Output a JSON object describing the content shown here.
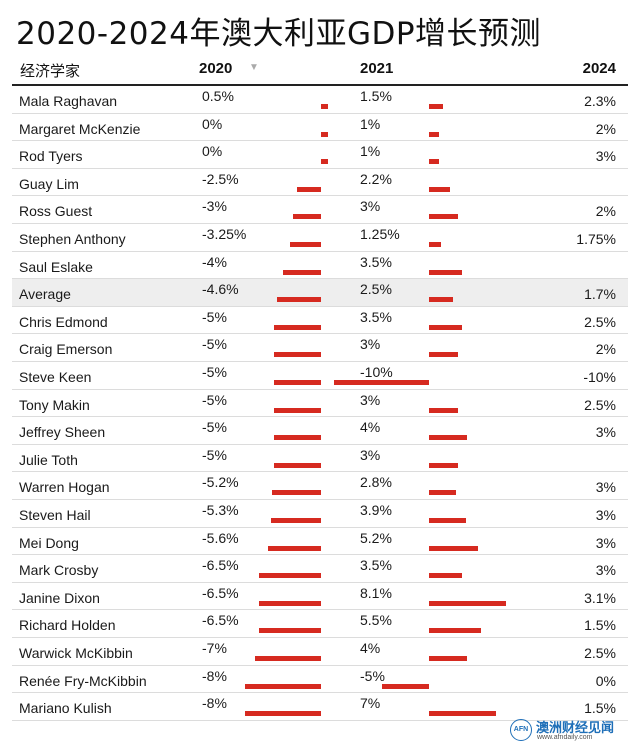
{
  "title": "2020-2024年澳大利亚GDP增长预测",
  "chart_data": {
    "type": "table",
    "columns": [
      "经济学家",
      "2020",
      "2021",
      "2024"
    ],
    "sorted_by": "2020",
    "bar_color": "#d62a20",
    "rows": [
      {
        "name": "Mala Raghavan",
        "y2020": "0.5%",
        "y2021": "1.5%",
        "y2024": "2.3%",
        "n2020": 0.5,
        "n2021": 1.5
      },
      {
        "name": "Margaret McKenzie",
        "y2020": "0%",
        "y2021": "1%",
        "y2024": "2%",
        "n2020": 0,
        "n2021": 1
      },
      {
        "name": "Rod Tyers",
        "y2020": "0%",
        "y2021": "1%",
        "y2024": "3%",
        "n2020": 0,
        "n2021": 1
      },
      {
        "name": "Guay Lim",
        "y2020": "-2.5%",
        "y2021": "2.2%",
        "y2024": "",
        "n2020": -2.5,
        "n2021": 2.2
      },
      {
        "name": "Ross Guest",
        "y2020": "-3%",
        "y2021": "3%",
        "y2024": "2%",
        "n2020": -3,
        "n2021": 3
      },
      {
        "name": "Stephen Anthony",
        "y2020": "-3.25%",
        "y2021": "1.25%",
        "y2024": "1.75%",
        "n2020": -3.25,
        "n2021": 1.25
      },
      {
        "name": "Saul Eslake",
        "y2020": "-4%",
        "y2021": "3.5%",
        "y2024": "",
        "n2020": -4,
        "n2021": 3.5
      },
      {
        "name": "Average",
        "y2020": "-4.6%",
        "y2021": "2.5%",
        "y2024": "1.7%",
        "n2020": -4.6,
        "n2021": 2.5,
        "highlight": true
      },
      {
        "name": "Chris Edmond",
        "y2020": "-5%",
        "y2021": "3.5%",
        "y2024": "2.5%",
        "n2020": -5,
        "n2021": 3.5
      },
      {
        "name": "Craig Emerson",
        "y2020": "-5%",
        "y2021": "3%",
        "y2024": "2%",
        "n2020": -5,
        "n2021": 3
      },
      {
        "name": "Steve Keen",
        "y2020": "-5%",
        "y2021": "-10%",
        "y2024": "-10%",
        "n2020": -5,
        "n2021": -10
      },
      {
        "name": "Tony Makin",
        "y2020": "-5%",
        "y2021": "3%",
        "y2024": "2.5%",
        "n2020": -5,
        "n2021": 3
      },
      {
        "name": "Jeffrey Sheen",
        "y2020": "-5%",
        "y2021": "4%",
        "y2024": "3%",
        "n2020": -5,
        "n2021": 4
      },
      {
        "name": "Julie Toth",
        "y2020": "-5%",
        "y2021": "3%",
        "y2024": "",
        "n2020": -5,
        "n2021": 3
      },
      {
        "name": "Warren Hogan",
        "y2020": "-5.2%",
        "y2021": "2.8%",
        "y2024": "3%",
        "n2020": -5.2,
        "n2021": 2.8
      },
      {
        "name": "Steven Hail",
        "y2020": "-5.3%",
        "y2021": "3.9%",
        "y2024": "3%",
        "n2020": -5.3,
        "n2021": 3.9
      },
      {
        "name": "Mei Dong",
        "y2020": "-5.6%",
        "y2021": "5.2%",
        "y2024": "3%",
        "n2020": -5.6,
        "n2021": 5.2
      },
      {
        "name": "Mark Crosby",
        "y2020": "-6.5%",
        "y2021": "3.5%",
        "y2024": "3%",
        "n2020": -6.5,
        "n2021": 3.5
      },
      {
        "name": "Janine Dixon",
        "y2020": "-6.5%",
        "y2021": "8.1%",
        "y2024": "3.1%",
        "n2020": -6.5,
        "n2021": 8.1
      },
      {
        "name": "Richard Holden",
        "y2020": "-6.5%",
        "y2021": "5.5%",
        "y2024": "1.5%",
        "n2020": -6.5,
        "n2021": 5.5
      },
      {
        "name": "Warwick McKibbin",
        "y2020": "-7%",
        "y2021": "4%",
        "y2024": "2.5%",
        "n2020": -7,
        "n2021": 4
      },
      {
        "name": "Renée Fry-McKibbin",
        "y2020": "-8%",
        "y2021": "-5%",
        "y2024": "0%",
        "n2020": -8,
        "n2021": -5
      },
      {
        "name": "Mariano Kulish",
        "y2020": "-8%",
        "y2021": "7%",
        "y2024": "1.5%",
        "n2020": -8,
        "n2021": 7
      }
    ]
  },
  "logo": {
    "mark": "AFN",
    "name": "澳洲财经见闻",
    "url": "www.afndaily.com"
  }
}
